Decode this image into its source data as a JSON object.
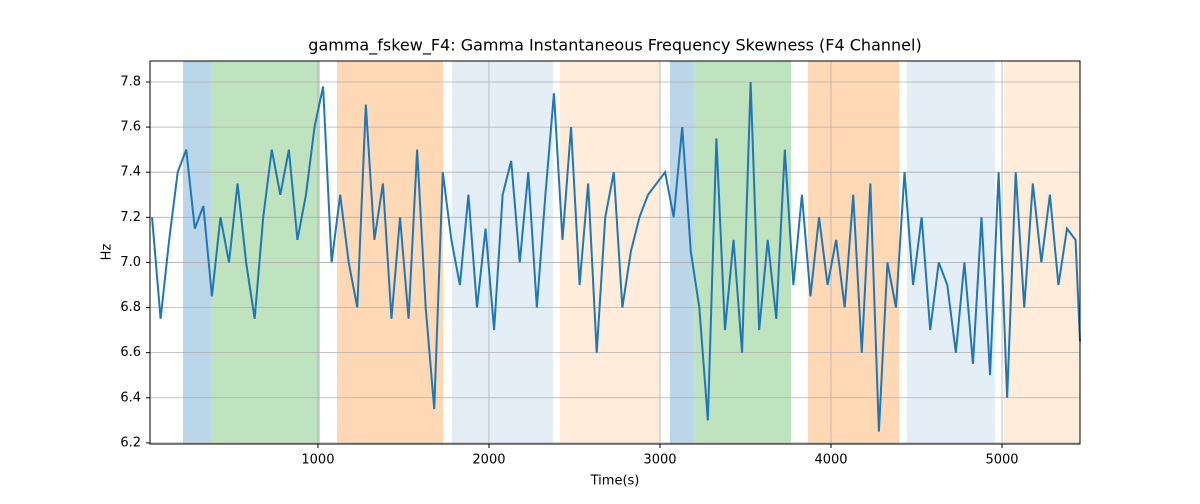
{
  "chart_data": {
    "type": "line",
    "title": "gamma_fskew_F4: Gamma Instantaneous Frequency Skewness (F4 Channel)",
    "x_label": "Time(s)",
    "y_label": "Hz",
    "x": [
      30,
      80,
      130,
      180,
      230,
      280,
      330,
      380,
      430,
      480,
      530,
      580,
      630,
      680,
      730,
      780,
      830,
      880,
      930,
      980,
      1030,
      1080,
      1130,
      1180,
      1230,
      1280,
      1330,
      1380,
      1430,
      1480,
      1530,
      1580,
      1630,
      1680,
      1730,
      1780,
      1830,
      1880,
      1930,
      1980,
      2030,
      2080,
      2130,
      2180,
      2230,
      2280,
      2330,
      2380,
      2430,
      2480,
      2530,
      2580,
      2630,
      2680,
      2730,
      2780,
      2830,
      2880,
      2930,
      2980,
      3030,
      3080,
      3130,
      3180,
      3230,
      3280,
      3330,
      3380,
      3430,
      3480,
      3530,
      3580,
      3630,
      3680,
      3730,
      3780,
      3830,
      3880,
      3930,
      3980,
      4030,
      4080,
      4130,
      4180,
      4230,
      4280,
      4330,
      4380,
      4430,
      4480,
      4530,
      4580,
      4630,
      4680,
      4730,
      4780,
      4830,
      4880,
      4930,
      4980,
      5030,
      5080,
      5130,
      5180,
      5230,
      5280,
      5330,
      5380,
      5430,
      5456
    ],
    "series": [
      {
        "color": "#1f77b4",
        "values": [
          7.2,
          6.75,
          7.1,
          7.4,
          7.5,
          7.15,
          7.25,
          6.85,
          7.2,
          7.0,
          7.35,
          7.0,
          6.75,
          7.2,
          7.5,
          7.3,
          7.5,
          7.1,
          7.3,
          7.6,
          7.78,
          7.0,
          7.3,
          7.0,
          6.8,
          7.7,
          7.1,
          7.35,
          6.75,
          7.2,
          6.75,
          7.5,
          6.8,
          6.35,
          7.4,
          7.1,
          6.9,
          7.3,
          6.8,
          7.15,
          6.7,
          7.3,
          7.45,
          7.0,
          7.4,
          6.8,
          7.3,
          7.75,
          7.1,
          7.6,
          6.9,
          7.35,
          6.6,
          7.2,
          7.4,
          6.8,
          7.05,
          7.2,
          7.3,
          7.35,
          7.4,
          7.2,
          7.6,
          7.05,
          6.8,
          6.3,
          7.55,
          6.7,
          7.1,
          6.6,
          7.8,
          6.7,
          7.1,
          6.75,
          7.5,
          6.9,
          7.3,
          6.85,
          7.2,
          6.9,
          7.1,
          6.8,
          7.3,
          6.6,
          7.35,
          6.25,
          7.0,
          6.8,
          7.4,
          6.9,
          7.2,
          6.7,
          7.0,
          6.9,
          6.6,
          7.0,
          6.55,
          7.2,
          6.5,
          7.4,
          6.4,
          7.4,
          6.8,
          7.35,
          7.0,
          7.3,
          6.9,
          7.15,
          7.1,
          6.65
        ]
      }
    ],
    "spans": [
      {
        "start": 211,
        "end": 374,
        "color": "#1f77b4",
        "opacity": 0.3
      },
      {
        "start": 374,
        "end": 1012,
        "color": "#2ca02c",
        "opacity": 0.3
      },
      {
        "start": 1111,
        "end": 1731,
        "color": "#ff7f0e",
        "opacity": 0.3
      },
      {
        "start": 1784,
        "end": 2374,
        "color": "#1f77b4",
        "opacity": 0.12
      },
      {
        "start": 2415,
        "end": 3000,
        "color": "#ff7f0e",
        "opacity": 0.15
      },
      {
        "start": 3058,
        "end": 3193,
        "color": "#1f77b4",
        "opacity": 0.3
      },
      {
        "start": 3193,
        "end": 3766,
        "color": "#2ca02c",
        "opacity": 0.3
      },
      {
        "start": 3865,
        "end": 4398,
        "color": "#ff7f0e",
        "opacity": 0.3
      },
      {
        "start": 4444,
        "end": 4959,
        "color": "#1f77b4",
        "opacity": 0.12
      },
      {
        "start": 5012,
        "end": 5456,
        "color": "#ff7f0e",
        "opacity": 0.15
      }
    ],
    "xlim": [
      18,
      5456
    ],
    "ylim": [
      6.195,
      7.893
    ],
    "xticks": [
      1000,
      2000,
      3000,
      4000,
      5000
    ],
    "yticks": [
      6.2,
      6.4,
      6.6,
      6.8,
      {
        "value": 7,
        "label": "7.0"
      },
      7.2,
      7.4,
      7.6,
      7.8
    ],
    "grid": true
  }
}
